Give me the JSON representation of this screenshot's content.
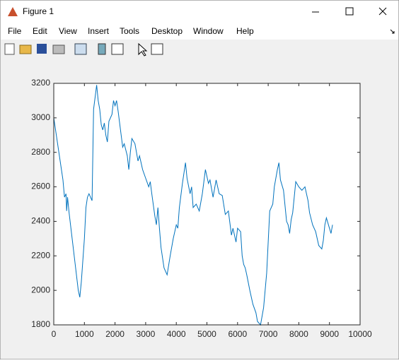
{
  "window": {
    "title": "Figure 1",
    "menu": [
      "File",
      "Edit",
      "View",
      "Insert",
      "Tools",
      "Desktop",
      "Window",
      "Help"
    ]
  },
  "chart_data": {
    "type": "line",
    "x": [
      0,
      100,
      200,
      300,
      350,
      400,
      420,
      450,
      500,
      600,
      700,
      800,
      850,
      900,
      1000,
      1050,
      1100,
      1150,
      1250,
      1300,
      1350,
      1400,
      1450,
      1500,
      1550,
      1600,
      1650,
      1700,
      1750,
      1800,
      1900,
      1950,
      2000,
      2050,
      2100,
      2200,
      2250,
      2300,
      2400,
      2450,
      2500,
      2550,
      2650,
      2750,
      2800,
      2900,
      3000,
      3100,
      3150,
      3200,
      3300,
      3350,
      3400,
      3450,
      3500,
      3600,
      3700,
      3800,
      3900,
      4000,
      4050,
      4100,
      4200,
      4250,
      4300,
      4350,
      4450,
      4500,
      4550,
      4650,
      4750,
      4850,
      4950,
      5050,
      5100,
      5200,
      5300,
      5400,
      5500,
      5600,
      5700,
      5800,
      5850,
      5950,
      6000,
      6100,
      6150,
      6200,
      6250,
      6300,
      6400,
      6500,
      6600,
      6650,
      6750,
      6850,
      6950,
      7050,
      7150,
      7200,
      7300,
      7350,
      7400,
      7500,
      7550,
      7600,
      7650,
      7700,
      7750,
      7800,
      7900,
      8000,
      8100,
      8200,
      8300,
      8350,
      8450,
      8550,
      8650,
      8750,
      8800,
      8850,
      8900,
      9000,
      9050,
      9100
    ],
    "series": [
      {
        "color": "#0072bd",
        "values": [
          3000,
          2880,
          2760,
          2640,
          2540,
          2560,
          2460,
          2540,
          2450,
          2300,
          2150,
          2000,
          1960,
          2050,
          2300,
          2480,
          2540,
          2560,
          2520,
          3050,
          3120,
          3190,
          3100,
          3050,
          2960,
          2930,
          2970,
          2900,
          2860,
          2980,
          3020,
          3100,
          3070,
          3100,
          3040,
          2900,
          2830,
          2850,
          2780,
          2700,
          2800,
          2880,
          2850,
          2750,
          2780,
          2700,
          2650,
          2600,
          2630,
          2560,
          2430,
          2380,
          2480,
          2360,
          2250,
          2130,
          2090,
          2200,
          2300,
          2380,
          2360,
          2480,
          2620,
          2680,
          2740,
          2650,
          2560,
          2600,
          2480,
          2500,
          2460,
          2560,
          2700,
          2620,
          2640,
          2540,
          2640,
          2560,
          2550,
          2440,
          2460,
          2320,
          2360,
          2280,
          2360,
          2340,
          2200,
          2150,
          2130,
          2090,
          2000,
          1920,
          1870,
          1820,
          1800,
          1900,
          2100,
          2460,
          2500,
          2600,
          2700,
          2740,
          2640,
          2580,
          2490,
          2400,
          2380,
          2330,
          2410,
          2450,
          2630,
          2600,
          2580,
          2600,
          2520,
          2450,
          2380,
          2340,
          2260,
          2240,
          2290,
          2380,
          2420,
          2360,
          2330,
          2380
        ]
      }
    ],
    "xlim": [
      0,
      10000
    ],
    "xticks": [
      0,
      1000,
      2000,
      3000,
      4000,
      5000,
      6000,
      7000,
      8000,
      9000,
      10000
    ],
    "ylim": [
      1800,
      3200
    ],
    "yticks": [
      1800,
      2000,
      2200,
      2400,
      2600,
      2800,
      3000,
      3200
    ],
    "grid": false
  }
}
